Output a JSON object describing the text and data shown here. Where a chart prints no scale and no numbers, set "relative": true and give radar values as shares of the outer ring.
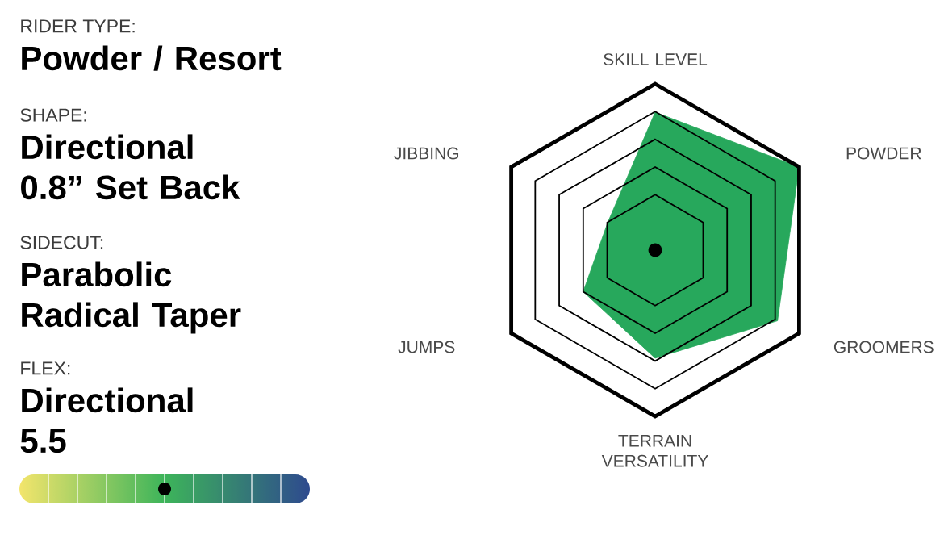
{
  "chart_data": [
    {
      "type": "other",
      "annotations": [
        "RIDER TYPE:",
        "Powder / Resort",
        "SHAPE:",
        "Directional 0.8” Set Back",
        "SIDECUT:",
        "Parabolic Radical Taper",
        "FLEX:",
        "Directional 5.5"
      ]
    },
    {
      "type": "radar",
      "relative": true,
      "categories": [
        "SKILL LEVEL",
        "POWDER",
        "GROOMERS",
        "TERRAIN VERSATILITY",
        "JUMPS",
        "JIBBING"
      ],
      "values": [
        0.83,
        1.0,
        0.85,
        0.65,
        0.5,
        0.33
      ],
      "color": "#27a85c"
    }
  ]
}
